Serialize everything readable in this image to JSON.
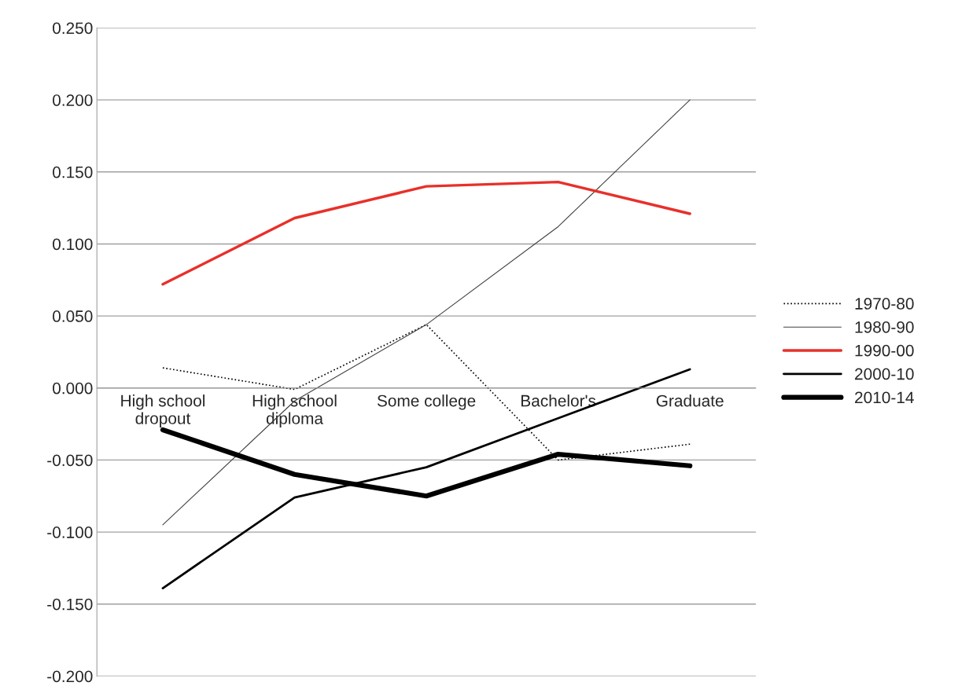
{
  "chart_data": {
    "type": "line",
    "categories": [
      "High school\ndropout",
      "High school\ndiploma",
      "Some college",
      "Bachelor's",
      "Graduate"
    ],
    "series": [
      {
        "name": "1970-80",
        "color": "#000000",
        "line_style": "dotted",
        "values": [
          0.014,
          -0.001,
          0.044,
          -0.05,
          -0.039
        ]
      },
      {
        "name": "1980-90",
        "color": "#404040",
        "line_style": "solid",
        "values": [
          -0.095,
          -0.009,
          0.044,
          0.112,
          0.2
        ]
      },
      {
        "name": "1990-00",
        "color": "#e8302a",
        "line_style": "solid",
        "values": [
          0.072,
          0.118,
          0.14,
          0.143,
          0.121
        ]
      },
      {
        "name": "2000-10",
        "color": "#000000",
        "line_style": "solid",
        "values": [
          -0.139,
          -0.076,
          -0.055,
          -0.021,
          0.013
        ]
      },
      {
        "name": "2010-14",
        "color": "#000000",
        "line_style": "solid",
        "values": [
          -0.029,
          -0.06,
          -0.075,
          -0.046,
          -0.054
        ]
      }
    ],
    "ylim": [
      -0.2,
      0.25
    ],
    "yticks": [
      {
        "value": -0.2,
        "label": "-0.200"
      },
      {
        "value": -0.15,
        "label": "-0.150"
      },
      {
        "value": -0.1,
        "label": "-0.100"
      },
      {
        "value": -0.05,
        "label": "-0.050"
      },
      {
        "value": 0,
        "label": "0.000"
      },
      {
        "value": 0.05,
        "label": "0.050"
      },
      {
        "value": 0.1,
        "label": "0.100"
      },
      {
        "value": 0.15,
        "label": "0.150"
      },
      {
        "value": 0.2,
        "label": "0.200"
      },
      {
        "value": 0.25,
        "label": "0.250"
      }
    ],
    "grid": "y",
    "legend": "right",
    "marker": "none"
  }
}
